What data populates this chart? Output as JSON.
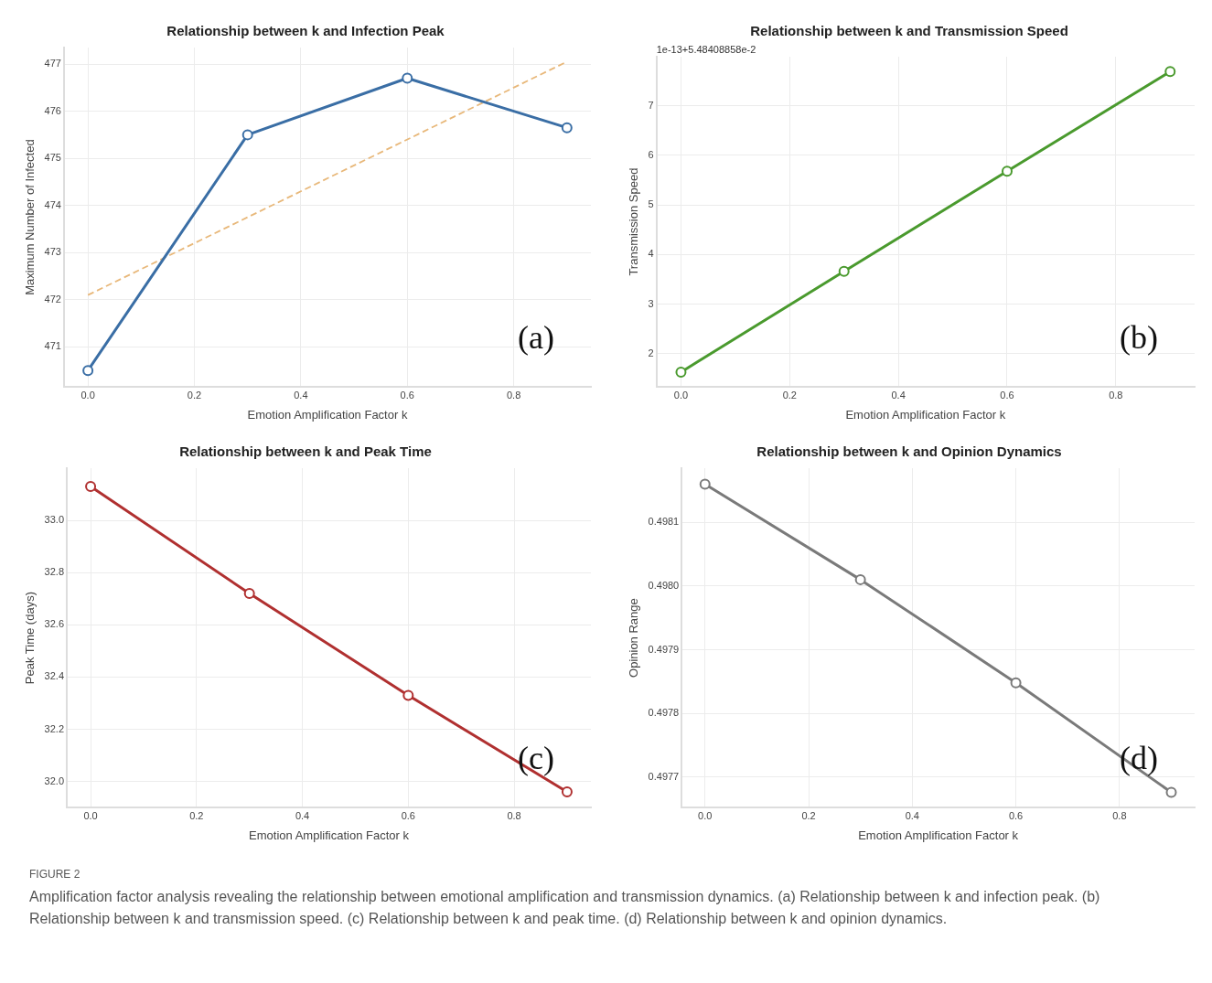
{
  "chart_data": [
    {
      "type": "line",
      "title": "Relationship between k and Infection Peak",
      "xlabel": "Emotion Amplification Factor k",
      "ylabel": "Maximum Number of Infected",
      "x": [
        0,
        0.3,
        0.6,
        0.9
      ],
      "series": [
        {
          "color": "#3a6ea5",
          "values": [
            470.5,
            475.5,
            476.7,
            475.65
          ],
          "marker": "circle"
        },
        {
          "type": "line",
          "x": [
            0,
            0.9
          ],
          "color": "#e8b87a",
          "values": [
            472.1,
            477.05
          ],
          "marker": "none",
          "line_style": "dashed"
        }
      ],
      "xlim": [
        -0.045,
        0.945
      ],
      "xticks": [
        {
          "value": 0,
          "label": "0.0"
        },
        {
          "value": 0.2,
          "label": "0.2"
        },
        {
          "value": 0.4,
          "label": "0.4"
        },
        {
          "value": 0.6,
          "label": "0.6"
        },
        {
          "value": 0.8,
          "label": "0.8"
        }
      ],
      "ylim": [
        470.15,
        477.35
      ],
      "yticks": [
        471,
        472,
        473,
        474,
        475,
        476,
        477
      ],
      "grid": true,
      "legend": false,
      "annotations": [
        "(a)"
      ]
    },
    {
      "type": "line",
      "title": "Relationship between k and Transmission Speed",
      "xlabel": "Emotion Amplification Factor k",
      "ylabel": "Transmission Speed",
      "x": [
        0,
        0.3,
        0.6,
        0.9
      ],
      "series": [
        {
          "color": "#4a9a2e",
          "values": [
            1.63,
            3.66,
            5.68,
            7.69
          ],
          "marker": "circle"
        }
      ],
      "xlim": [
        -0.045,
        0.945
      ],
      "xticks": [
        {
          "value": 0,
          "label": "0.0"
        },
        {
          "value": 0.2,
          "label": "0.2"
        },
        {
          "value": 0.4,
          "label": "0.4"
        },
        {
          "value": 0.6,
          "label": "0.6"
        },
        {
          "value": 0.8,
          "label": "0.8"
        }
      ],
      "ylim": [
        1.33,
        7.99
      ],
      "yticks": [
        2,
        3,
        4,
        5,
        6,
        7
      ],
      "grid": true,
      "legend": false,
      "annotations": [
        "(b)",
        "1e-13+5.48408858e-2"
      ]
    },
    {
      "type": "line",
      "title": "Relationship between k and Peak Time",
      "xlabel": "Emotion Amplification Factor k",
      "ylabel": "Peak Time (days)",
      "x": [
        0,
        0.3,
        0.6,
        0.9
      ],
      "series": [
        {
          "color": "#b03030",
          "values": [
            33.13,
            32.72,
            32.33,
            31.96
          ],
          "marker": "circle"
        }
      ],
      "xlim": [
        -0.045,
        0.945
      ],
      "xticks": [
        {
          "value": 0,
          "label": "0.0"
        },
        {
          "value": 0.2,
          "label": "0.2"
        },
        {
          "value": 0.4,
          "label": "0.4"
        },
        {
          "value": 0.6,
          "label": "0.6"
        },
        {
          "value": 0.8,
          "label": "0.8"
        }
      ],
      "ylim": [
        31.9,
        33.2
      ],
      "yticks": [
        {
          "value": 32,
          "label": "32.0"
        },
        {
          "value": 32.2,
          "label": "32.2"
        },
        {
          "value": 32.4,
          "label": "32.4"
        },
        {
          "value": 32.6,
          "label": "32.6"
        },
        {
          "value": 32.8,
          "label": "32.8"
        },
        {
          "value": 33,
          "label": "33.0"
        }
      ],
      "grid": true,
      "legend": false,
      "annotations": [
        "(c)"
      ]
    },
    {
      "type": "line",
      "title": "Relationship between k and Opinion Dynamics",
      "xlabel": "Emotion Amplification Factor k",
      "ylabel": "Opinion Range",
      "x": [
        0,
        0.3,
        0.6,
        0.9
      ],
      "series": [
        {
          "color": "#7a7a7a",
          "values": [
            0.49816,
            0.49801,
            0.497848,
            0.497676
          ],
          "marker": "circle"
        }
      ],
      "xlim": [
        -0.045,
        0.945
      ],
      "xticks": [
        {
          "value": 0,
          "label": "0.0"
        },
        {
          "value": 0.2,
          "label": "0.2"
        },
        {
          "value": 0.4,
          "label": "0.4"
        },
        {
          "value": 0.6,
          "label": "0.6"
        },
        {
          "value": 0.8,
          "label": "0.8"
        }
      ],
      "ylim": [
        0.497652,
        0.498185
      ],
      "yticks": [
        0.4977,
        0.4978,
        0.4979,
        {
          "value": 0.498,
          "label": "0.4980"
        },
        0.4981
      ],
      "grid": true,
      "legend": false,
      "annotations": [
        "(d)",
        "FIGURE 2",
        "Amplification factor analysis revealing the relationship between emotional amplification and transmission dynamics. (a) Relationship between k and infection peak. (b) Relationship between k and transmission speed. (c) Relationship between k and peak time. (d) Relationship between k and opinion dynamics."
      ]
    }
  ]
}
